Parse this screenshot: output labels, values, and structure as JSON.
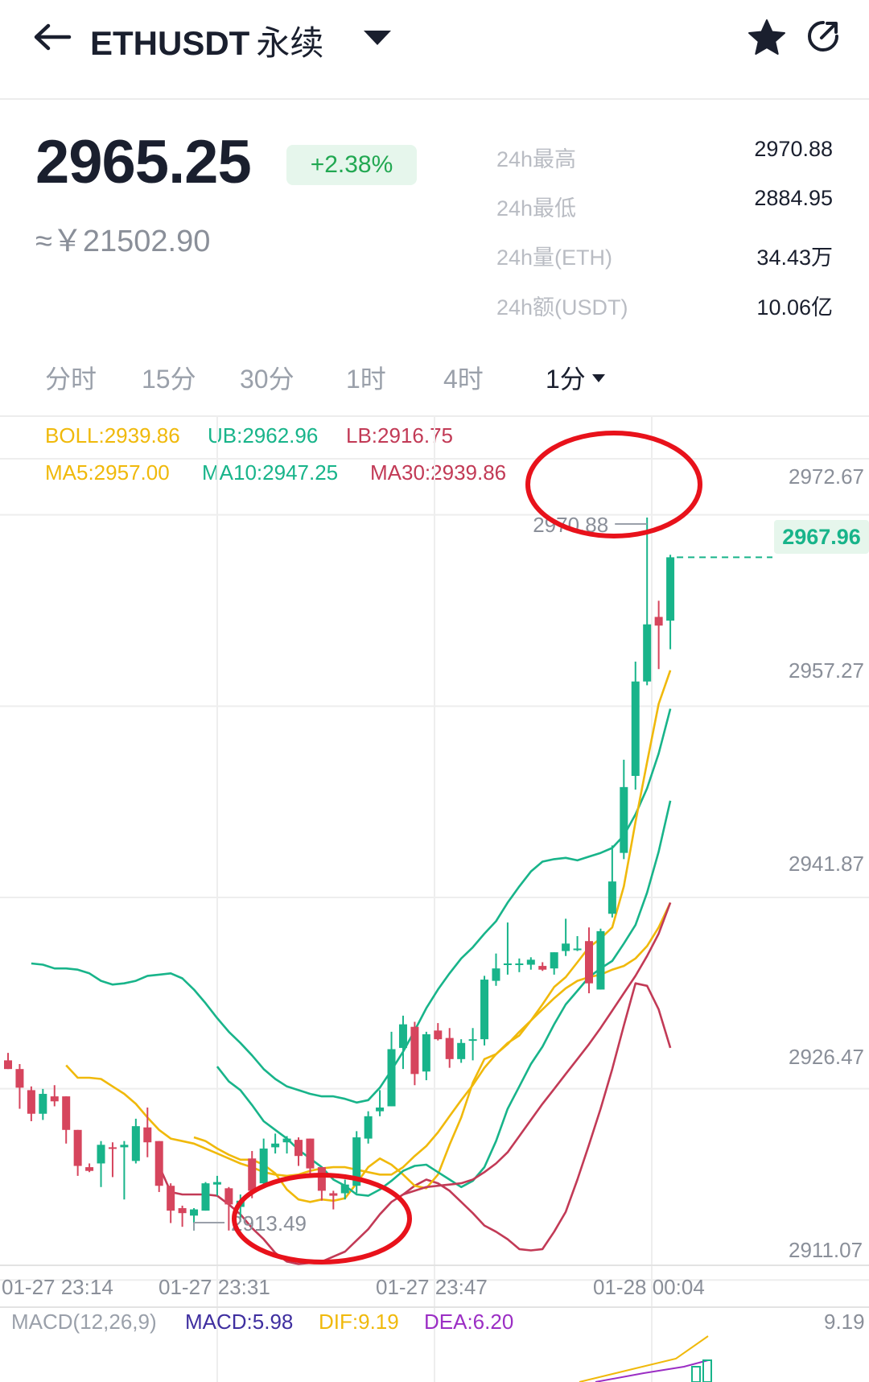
{
  "header": {
    "symbol": "ETHUSDT",
    "contract_type": "永续",
    "icons": {
      "back": "back-arrow-icon",
      "dropdown": "caret-down-icon",
      "favorite": "star-icon",
      "share": "share-icon"
    }
  },
  "ticker": {
    "last_price": "2965.25",
    "change_pct": "+2.38%",
    "cny_value": "≈￥21502.90",
    "stats": [
      {
        "label": "24h最高",
        "value": "2970.88"
      },
      {
        "label": "24h最低",
        "value": "2884.95"
      },
      {
        "label": "24h量(ETH)",
        "value": "34.43万"
      },
      {
        "label": "24h额(USDT)",
        "value": "10.06亿"
      }
    ]
  },
  "intervals": {
    "tabs": [
      "分时",
      "15分",
      "30分",
      "1时",
      "4时",
      "1分"
    ],
    "selected": "1分"
  },
  "indicators": {
    "boll": "BOLL:2939.86",
    "ub": "UB:2962.96",
    "lb": "LB:2916.75",
    "ma5": "MA5:2957.00",
    "ma10": "MA10:2947.25",
    "ma30": "MA30:2939.86"
  },
  "macd": {
    "label": "MACD(12,26,9)",
    "macd": "MACD:5.98",
    "dif": "DIF:9.19",
    "dea": "DEA:6.20",
    "right_value": "9.19"
  },
  "colors": {
    "up": "#18b48a",
    "down": "#d6455d",
    "ma5": "#f0b90b",
    "ma10": "#18b48a",
    "ma30": "#c23a56",
    "macd": "#3f2fa0",
    "dea": "#9b2ec4",
    "annotation": "#e8121b"
  },
  "annotations": {
    "high": "2970.88",
    "low": "2913.49"
  },
  "current_price_tag": "2967.96",
  "chart_data": {
    "type": "candlestick",
    "ytick_labels": [
      "2972.67",
      "2957.27",
      "2941.87",
      "2926.47",
      "2911.07"
    ],
    "yticks": [
      2972.67,
      2957.27,
      2941.87,
      2926.47,
      2911.07
    ],
    "ylim": [
      2910.7,
      2975.5
    ],
    "xtick_labels": [
      "01-27 23:14",
      "01-27 23:31",
      "01-27 23:47",
      "01-28 00:04"
    ],
    "grid": true,
    "candles": [
      {
        "o": 2927.2,
        "h": 2927.8,
        "l": 2926.5,
        "c": 2926.5
      },
      {
        "o": 2926.5,
        "h": 2926.9,
        "l": 2923.3,
        "c": 2925.0
      },
      {
        "o": 2924.8,
        "h": 2925.1,
        "l": 2922.3,
        "c": 2922.9
      },
      {
        "o": 2922.9,
        "h": 2924.9,
        "l": 2922.4,
        "c": 2924.5
      },
      {
        "o": 2924.3,
        "h": 2925.2,
        "l": 2923.5,
        "c": 2923.9
      },
      {
        "o": 2924.3,
        "h": 2924.3,
        "l": 2920.5,
        "c": 2921.6
      },
      {
        "o": 2921.6,
        "h": 2921.6,
        "l": 2917.9,
        "c": 2918.7
      },
      {
        "o": 2918.6,
        "h": 2918.9,
        "l": 2918.2,
        "c": 2918.3
      },
      {
        "o": 2918.9,
        "h": 2920.7,
        "l": 2917.0,
        "c": 2920.4
      },
      {
        "o": 2920.2,
        "h": 2920.6,
        "l": 2917.8,
        "c": 2920.1
      },
      {
        "o": 2920.2,
        "h": 2920.7,
        "l": 2916.0,
        "c": 2920.4
      },
      {
        "o": 2919.1,
        "h": 2922.5,
        "l": 2918.9,
        "c": 2921.9
      },
      {
        "o": 2921.8,
        "h": 2923.4,
        "l": 2919.4,
        "c": 2920.6
      },
      {
        "o": 2920.7,
        "h": 2920.7,
        "l": 2916.6,
        "c": 2917.1
      },
      {
        "o": 2917.1,
        "h": 2917.3,
        "l": 2914.1,
        "c": 2915.1
      },
      {
        "o": 2915.3,
        "h": 2915.5,
        "l": 2913.8,
        "c": 2914.9
      },
      {
        "o": 2914.7,
        "h": 2915.3,
        "l": 2913.5,
        "c": 2915.2
      },
      {
        "o": 2915.1,
        "h": 2917.4,
        "l": 2915.1,
        "c": 2917.3
      },
      {
        "o": 2917.2,
        "h": 2917.9,
        "l": 2916.3,
        "c": 2917.4
      },
      {
        "o": 2916.9,
        "h": 2917.0,
        "l": 2913.5,
        "c": 2915.6
      },
      {
        "o": 2915.4,
        "h": 2916.4,
        "l": 2914.2,
        "c": 2915.9
      },
      {
        "o": 2919.3,
        "h": 2919.9,
        "l": 2916.1,
        "c": 2916.7
      },
      {
        "o": 2917.3,
        "h": 2920.9,
        "l": 2917.2,
        "c": 2920.1
      },
      {
        "o": 2920.2,
        "h": 2921.3,
        "l": 2919.7,
        "c": 2920.5
      },
      {
        "o": 2920.6,
        "h": 2921.1,
        "l": 2919.7,
        "c": 2920.9
      },
      {
        "o": 2920.8,
        "h": 2921.0,
        "l": 2918.7,
        "c": 2919.5
      },
      {
        "o": 2920.9,
        "h": 2920.9,
        "l": 2918.1,
        "c": 2918.5
      },
      {
        "o": 2918.6,
        "h": 2918.6,
        "l": 2915.9,
        "c": 2916.7
      },
      {
        "o": 2916.5,
        "h": 2916.7,
        "l": 2915.2,
        "c": 2916.3
      },
      {
        "o": 2916.5,
        "h": 2917.6,
        "l": 2916.0,
        "c": 2917.2
      },
      {
        "o": 2917.1,
        "h": 2921.5,
        "l": 2916.5,
        "c": 2921.0
      },
      {
        "o": 2920.9,
        "h": 2923.1,
        "l": 2920.5,
        "c": 2922.7
      },
      {
        "o": 2923.1,
        "h": 2924.8,
        "l": 2922.7,
        "c": 2923.4
      },
      {
        "o": 2923.5,
        "h": 2929.5,
        "l": 2923.5,
        "c": 2928.1
      },
      {
        "o": 2928.2,
        "h": 2930.8,
        "l": 2926.5,
        "c": 2930.1
      },
      {
        "o": 2929.9,
        "h": 2930.3,
        "l": 2925.2,
        "c": 2926.1
      },
      {
        "o": 2926.3,
        "h": 2929.5,
        "l": 2925.6,
        "c": 2929.3
      },
      {
        "o": 2929.6,
        "h": 2930.2,
        "l": 2928.8,
        "c": 2928.9
      },
      {
        "o": 2929.0,
        "h": 2929.8,
        "l": 2926.6,
        "c": 2927.3
      },
      {
        "o": 2927.3,
        "h": 2928.9,
        "l": 2927.0,
        "c": 2928.6
      },
      {
        "o": 2928.8,
        "h": 2929.8,
        "l": 2927.2,
        "c": 2928.9
      },
      {
        "o": 2928.9,
        "h": 2934.0,
        "l": 2928.4,
        "c": 2933.7
      },
      {
        "o": 2933.6,
        "h": 2935.8,
        "l": 2933.2,
        "c": 2934.6
      },
      {
        "o": 2934.9,
        "h": 2938.3,
        "l": 2934.1,
        "c": 2935.0
      },
      {
        "o": 2935.0,
        "h": 2935.4,
        "l": 2934.3,
        "c": 2935.0
      },
      {
        "o": 2934.9,
        "h": 2935.5,
        "l": 2934.5,
        "c": 2935.3
      },
      {
        "o": 2934.8,
        "h": 2935.1,
        "l": 2934.4,
        "c": 2934.5
      },
      {
        "o": 2934.6,
        "h": 2935.9,
        "l": 2934.1,
        "c": 2935.9
      },
      {
        "o": 2936.0,
        "h": 2938.6,
        "l": 2935.6,
        "c": 2936.6
      },
      {
        "o": 2936.2,
        "h": 2937.2,
        "l": 2936.0,
        "c": 2936.2
      },
      {
        "o": 2936.8,
        "h": 2937.9,
        "l": 2932.6,
        "c": 2933.4
      },
      {
        "o": 2932.9,
        "h": 2937.8,
        "l": 2932.9,
        "c": 2937.6
      },
      {
        "o": 2939.0,
        "h": 2944.5,
        "l": 2938.7,
        "c": 2941.6
      },
      {
        "o": 2943.9,
        "h": 2951.4,
        "l": 2943.4,
        "c": 2949.2
      },
      {
        "o": 2950.1,
        "h": 2959.3,
        "l": 2949.0,
        "c": 2957.7
      },
      {
        "o": 2957.7,
        "h": 2970.9,
        "l": 2957.4,
        "c": 2962.3
      },
      {
        "o": 2962.9,
        "h": 2964.2,
        "l": 2958.7,
        "c": 2962.2
      },
      {
        "o": 2962.6,
        "h": 2967.9,
        "l": 2960.3,
        "c": 2967.7
      }
    ],
    "series": [
      {
        "name": "UB",
        "values": [
          2935.0,
          2934.9,
          2934.6,
          2934.6,
          2934.5,
          2934.2,
          2933.6,
          2933.3,
          2933.4,
          2933.6,
          2934.0,
          2934.1,
          2934.2,
          2933.8,
          2932.9,
          2931.8,
          2930.6,
          2929.5,
          2928.6,
          2927.6,
          2926.5,
          2925.7,
          2925.1,
          2924.8,
          2924.5,
          2924.3,
          2924.3,
          2924.1,
          2923.8,
          2924.0,
          2925.0,
          2926.4,
          2927.9,
          2929.6,
          2931.4,
          2932.9,
          2934.2,
          2935.4,
          2936.3,
          2937.4,
          2938.4,
          2939.9,
          2941.2,
          2942.4,
          2943.2,
          2943.4,
          2943.5,
          2943.3,
          2943.6,
          2943.9,
          2944.3,
          2945.3,
          2947.0,
          2949.1,
          2951.9,
          2955.5
        ]
      },
      {
        "name": "BOLL",
        "values": [
          2926.8,
          2925.8,
          2925.8,
          2925.7,
          2925.1,
          2924.5,
          2923.7,
          2922.6,
          2921.6,
          2920.9,
          2920.7,
          2920.5,
          2920.1,
          2919.7,
          2919.3,
          2918.9,
          2918.6,
          2918.2,
          2918.0,
          2917.9,
          2918.0,
          2918.3,
          2918.5,
          2918.6,
          2918.6,
          2918.4,
          2918.2,
          2918.0,
          2918.0,
          2918.6,
          2919.5,
          2920.3,
          2921.4,
          2922.7,
          2924.0,
          2925.2,
          2926.6,
          2927.7,
          2928.5,
          2929.5,
          2930.4,
          2931.3,
          2932.2,
          2933.0,
          2933.6,
          2933.9,
          2934.1,
          2934.5,
          2934.8,
          2935.4,
          2936.4,
          2937.9,
          2939.9
        ]
      },
      {
        "name": "LB",
        "values": [
          2918.7,
          2916.6,
          2916.4,
          2916.4,
          2916.4,
          2916.3,
          2915.6,
          2914.8,
          2913.7,
          2912.8,
          2911.7,
          2911.0,
          2910.8,
          2910.9,
          2911.0,
          2911.4,
          2911.8,
          2912.7,
          2913.6,
          2914.8,
          2915.8,
          2916.4,
          2917.1,
          2917.6,
          2917.3,
          2916.7,
          2915.8,
          2914.9,
          2913.9,
          2913.4,
          2912.8,
          2912.0,
          2911.9,
          2912.0,
          2913.4,
          2915.0,
          2917.6,
          2920.4,
          2923.3,
          2926.5,
          2930.0,
          2933.4,
          2933.2,
          2931.3,
          2928.2
        ]
      },
      {
        "name": "MA5",
        "values": [
          2921.0,
          2920.7,
          2920.1,
          2919.6,
          2919.2,
          2919.2,
          2918.8,
          2918.1,
          2916.8,
          2916.0,
          2915.8,
          2916.0,
          2915.9,
          2916.1,
          2917.3,
          2918.6,
          2919.3,
          2918.8,
          2918.0,
          2917.1,
          2916.9,
          2918.0,
          2920.4,
          2922.6,
          2925.4,
          2927.3,
          2927.7,
          2928.6,
          2929.2,
          2930.4,
          2931.7,
          2933.1,
          2933.9,
          2935.1,
          2936.3,
          2937.0,
          2937.9,
          2941.2,
          2946.4,
          2951.2,
          2955.9,
          2958.6
        ]
      },
      {
        "name": "MA10",
        "values": [
          2926.7,
          2925.5,
          2924.8,
          2923.6,
          2922.3,
          2921.6,
          2920.9,
          2920.0,
          2919.3,
          2918.6,
          2917.6,
          2917.1,
          2916.4,
          2916.3,
          2916.8,
          2917.5,
          2918.3,
          2918.7,
          2918.8,
          2918.2,
          2917.6,
          2917.0,
          2917.5,
          2918.6,
          2920.7,
          2923.3,
          2925.1,
          2926.9,
          2928.3,
          2930.1,
          2931.7,
          2932.8,
          2933.9,
          2934.6,
          2935.2,
          2936.6,
          2938.1,
          2940.7,
          2944.0,
          2948.1
        ]
      },
      {
        "name": "MA30",
        "values": [
          2916.4,
          2916.7,
          2917.0,
          2917.1,
          2917.2,
          2917.3,
          2917.6,
          2918.2,
          2918.9,
          2919.8,
          2921.1,
          2922.4,
          2923.7,
          2924.9,
          2926.1,
          2927.3,
          2928.5,
          2929.8,
          2931.2,
          2932.6,
          2934.0,
          2935.6,
          2937.4,
          2939.9
        ]
      }
    ]
  }
}
